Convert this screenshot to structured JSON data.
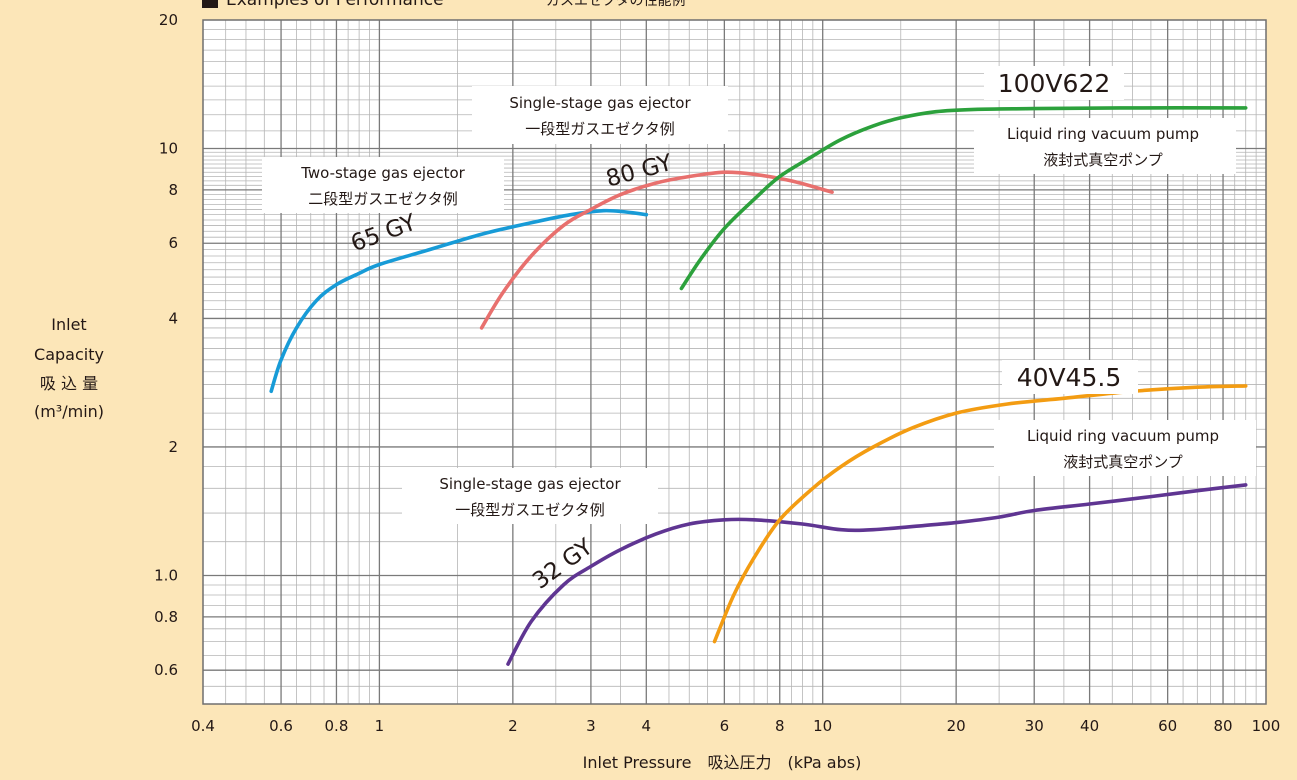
{
  "chart_data": {
    "type": "line",
    "title": "Examples of Performance",
    "title_jp": "ガスエゼクタの性能例",
    "xlabel": "Inlet Pressure　吸込圧力　(kPa abs)",
    "ylabel_lines": [
      "Inlet",
      "Capacity",
      "吸 込 量",
      "(m³/min)"
    ],
    "x_scale": "log",
    "y_scale": "log",
    "xlim": [
      0.4,
      100
    ],
    "ylim": [
      0.5,
      20
    ],
    "x_ticks": [
      {
        "value": 0.4,
        "label": "0.4"
      },
      {
        "value": 0.6,
        "label": "0.6"
      },
      {
        "value": 0.8,
        "label": "0.8"
      },
      {
        "value": 1,
        "label": "1"
      },
      {
        "value": 2,
        "label": "2"
      },
      {
        "value": 3,
        "label": "3"
      },
      {
        "value": 4,
        "label": "4"
      },
      {
        "value": 6,
        "label": "6"
      },
      {
        "value": 8,
        "label": "8"
      },
      {
        "value": 10,
        "label": "10"
      },
      {
        "value": 20,
        "label": "20"
      },
      {
        "value": 30,
        "label": "30"
      },
      {
        "value": 40,
        "label": "40"
      },
      {
        "value": 60,
        "label": "60"
      },
      {
        "value": 80,
        "label": "80"
      },
      {
        "value": 100,
        "label": "100"
      }
    ],
    "y_ticks": [
      {
        "value": 0.6,
        "label": "0.6"
      },
      {
        "value": 0.8,
        "label": "0.8"
      },
      {
        "value": 1.0,
        "label": "1.0"
      },
      {
        "value": 2,
        "label": "2"
      },
      {
        "value": 4,
        "label": "4"
      },
      {
        "value": 6,
        "label": "6"
      },
      {
        "value": 8,
        "label": "8"
      },
      {
        "value": 10,
        "label": "10"
      },
      {
        "value": 20,
        "label": "20"
      }
    ],
    "grid": true,
    "series": [
      {
        "name": "65 GY",
        "color": "#179bd7",
        "points": [
          [
            0.57,
            2.7
          ],
          [
            0.6,
            3.2
          ],
          [
            0.65,
            3.8
          ],
          [
            0.72,
            4.4
          ],
          [
            0.8,
            4.8
          ],
          [
            0.9,
            5.1
          ],
          [
            1.0,
            5.35
          ],
          [
            1.3,
            5.8
          ],
          [
            1.7,
            6.3
          ],
          [
            2.2,
            6.7
          ],
          [
            2.7,
            7.0
          ],
          [
            3.2,
            7.15
          ],
          [
            3.6,
            7.1
          ],
          [
            4.0,
            7.0
          ]
        ]
      },
      {
        "name": "80 GY",
        "color": "#e8706e",
        "points": [
          [
            1.7,
            3.8
          ],
          [
            1.9,
            4.6
          ],
          [
            2.2,
            5.6
          ],
          [
            2.6,
            6.6
          ],
          [
            3.0,
            7.2
          ],
          [
            3.5,
            7.8
          ],
          [
            4.2,
            8.3
          ],
          [
            5.0,
            8.6
          ],
          [
            6.0,
            8.8
          ],
          [
            7.0,
            8.7
          ],
          [
            8.5,
            8.4
          ],
          [
            10.5,
            7.9
          ]
        ]
      },
      {
        "name": "100V622",
        "color": "#2ca13c",
        "points": [
          [
            4.8,
            4.7
          ],
          [
            5.3,
            5.5
          ],
          [
            6.0,
            6.5
          ],
          [
            7.0,
            7.6
          ],
          [
            8.0,
            8.6
          ],
          [
            9.5,
            9.6
          ],
          [
            11,
            10.5
          ],
          [
            13,
            11.3
          ],
          [
            15,
            11.8
          ],
          [
            18,
            12.2
          ],
          [
            22,
            12.35
          ],
          [
            30,
            12.4
          ],
          [
            50,
            12.45
          ],
          [
            90,
            12.45
          ]
        ]
      },
      {
        "name": "32 GY",
        "color": "#5f3592",
        "points": [
          [
            1.95,
            0.62
          ],
          [
            2.2,
            0.78
          ],
          [
            2.6,
            0.95
          ],
          [
            3.0,
            1.05
          ],
          [
            3.5,
            1.15
          ],
          [
            4.2,
            1.25
          ],
          [
            5.0,
            1.32
          ],
          [
            6.0,
            1.35
          ],
          [
            7.0,
            1.35
          ],
          [
            9.0,
            1.32
          ],
          [
            11,
            1.28
          ],
          [
            13,
            1.28
          ],
          [
            17,
            1.31
          ],
          [
            20,
            1.33
          ],
          [
            25,
            1.37
          ],
          [
            30,
            1.42
          ],
          [
            40,
            1.47
          ],
          [
            55,
            1.53
          ],
          [
            70,
            1.58
          ],
          [
            90,
            1.63
          ]
        ]
      },
      {
        "name": "40V45.5",
        "color": "#f39c12",
        "points": [
          [
            5.7,
            0.7
          ],
          [
            6.3,
            0.9
          ],
          [
            7.0,
            1.1
          ],
          [
            8.0,
            1.35
          ],
          [
            9.5,
            1.6
          ],
          [
            11,
            1.8
          ],
          [
            13,
            2.0
          ],
          [
            16,
            2.22
          ],
          [
            20,
            2.4
          ],
          [
            26,
            2.52
          ],
          [
            35,
            2.6
          ],
          [
            50,
            2.7
          ],
          [
            70,
            2.76
          ],
          [
            90,
            2.78
          ]
        ]
      }
    ],
    "annotations": {
      "curve_labels": [
        {
          "text": "65 GY",
          "series": 0
        },
        {
          "text": "80 GY",
          "series": 1
        },
        {
          "text": "32 GY",
          "series": 3
        }
      ],
      "model_labels": [
        {
          "text": "100V622",
          "series": 2
        },
        {
          "text": "40V45.5",
          "series": 4
        }
      ],
      "boxes": [
        {
          "lines": [
            "Single-stage gas ejector",
            "一段型ガスエゼクタ例"
          ]
        },
        {
          "lines": [
            "Two-stage gas ejector",
            "二段型ガスエゼクタ例"
          ]
        },
        {
          "lines": [
            "Liquid ring vacuum pump",
            "液封式真空ポンプ"
          ]
        },
        {
          "lines": [
            "Single-stage gas ejector",
            "一段型ガスエゼクタ例"
          ]
        },
        {
          "lines": [
            "Liquid ring vacuum pump",
            "液封式真空ポンプ"
          ]
        }
      ]
    }
  }
}
